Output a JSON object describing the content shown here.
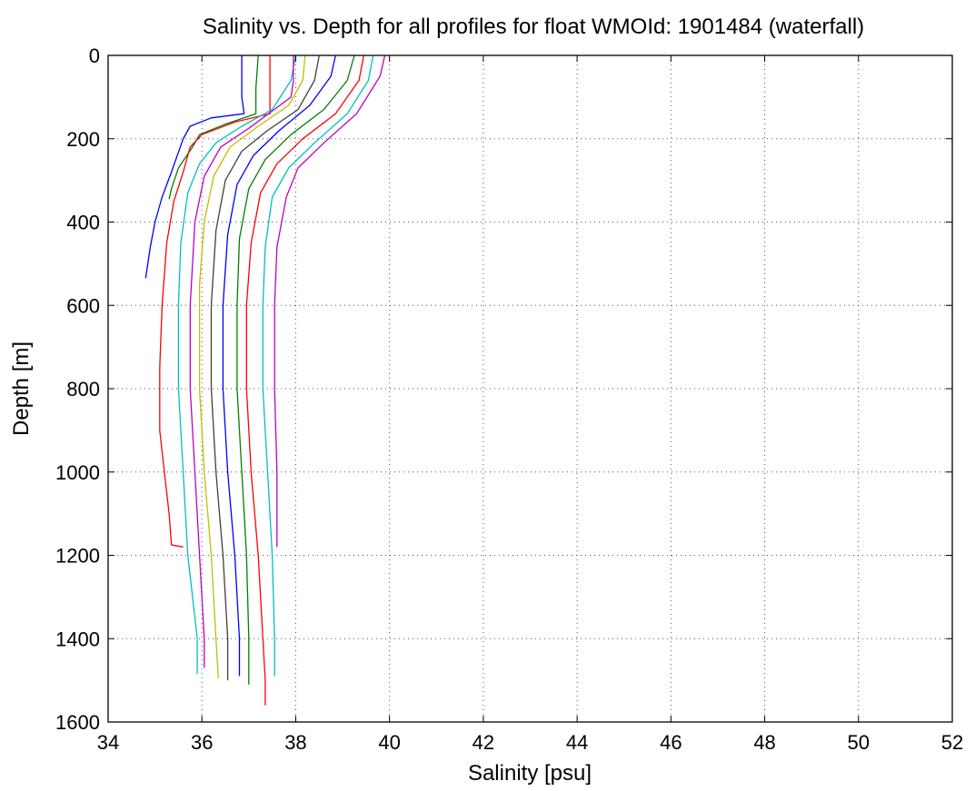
{
  "chart_data": {
    "type": "line",
    "title": "Salinity vs. Depth for all profiles for float WMOId: 1901484 (waterfall)",
    "xlabel": "Salinity [psu]",
    "ylabel": "Depth [m]",
    "xlim": [
      34,
      52
    ],
    "ylim": [
      0,
      1600
    ],
    "y_reversed": true,
    "grid": true,
    "xticks": [
      34,
      36,
      38,
      40,
      42,
      44,
      46,
      48,
      50,
      52
    ],
    "yticks": [
      0,
      200,
      400,
      600,
      800,
      1000,
      1200,
      1400,
      1600
    ],
    "series": [
      {
        "color": "#0000ff",
        "x": [
          36.85,
          36.85,
          36.9,
          36.2,
          35.75,
          35.6,
          35.35,
          35.15,
          35.0,
          34.9,
          34.8
        ],
        "y": [
          0,
          100,
          140,
          150,
          170,
          200,
          280,
          340,
          400,
          460,
          535
        ]
      },
      {
        "color": "#008000",
        "x": [
          37.2,
          37.15,
          37.15,
          36.5,
          35.95,
          35.8,
          35.5,
          35.35,
          35.3
        ],
        "y": [
          0,
          80,
          140,
          165,
          190,
          220,
          270,
          320,
          345
        ]
      },
      {
        "color": "#ff0000",
        "x": [
          37.45,
          37.45,
          37.45,
          36.7,
          36.0,
          35.75,
          35.6,
          35.4,
          35.25,
          35.15,
          35.1,
          35.1,
          35.2,
          35.3,
          35.35,
          35.6
        ],
        "y": [
          0,
          80,
          140,
          160,
          190,
          220,
          280,
          350,
          450,
          600,
          750,
          900,
          1000,
          1100,
          1175,
          1180
        ]
      },
      {
        "color": "#00bfbf",
        "x": [
          38.0,
          37.9,
          37.5,
          36.85,
          36.3,
          35.95,
          35.7,
          35.55,
          35.5,
          35.5,
          35.6,
          35.7,
          35.8,
          35.9,
          35.9
        ],
        "y": [
          0,
          60,
          130,
          170,
          210,
          260,
          330,
          450,
          600,
          800,
          1000,
          1200,
          1300,
          1400,
          1485
        ]
      },
      {
        "color": "#bf00bf",
        "x": [
          37.95,
          37.95,
          37.95,
          37.9,
          37.0,
          36.4,
          36.05,
          35.85,
          35.75,
          35.75,
          35.85,
          35.95,
          36.05,
          36.05
        ],
        "y": [
          0,
          30,
          60,
          100,
          175,
          220,
          290,
          400,
          600,
          800,
          1000,
          1200,
          1400,
          1470
        ]
      },
      {
        "color": "#bfbf00",
        "x": [
          38.2,
          38.15,
          37.85,
          37.2,
          36.6,
          36.25,
          36.05,
          35.95,
          35.95,
          36.05,
          36.2,
          36.3,
          36.35
        ],
        "y": [
          0,
          60,
          120,
          170,
          220,
          290,
          400,
          550,
          800,
          1000,
          1200,
          1400,
          1495
        ]
      },
      {
        "color": "#404040",
        "x": [
          38.5,
          38.4,
          38.05,
          37.4,
          36.85,
          36.5,
          36.3,
          36.2,
          36.2,
          36.3,
          36.45,
          36.55,
          36.55
        ],
        "y": [
          0,
          60,
          130,
          180,
          230,
          300,
          420,
          600,
          800,
          1000,
          1200,
          1400,
          1500
        ]
      },
      {
        "color": "#0000ff",
        "x": [
          38.85,
          38.75,
          38.3,
          37.65,
          37.1,
          36.75,
          36.55,
          36.45,
          36.45,
          36.55,
          36.7,
          36.8,
          36.8
        ],
        "y": [
          0,
          50,
          120,
          180,
          240,
          310,
          430,
          600,
          800,
          1000,
          1200,
          1400,
          1490
        ]
      },
      {
        "color": "#008000",
        "x": [
          39.25,
          39.1,
          38.6,
          37.9,
          37.35,
          37.0,
          36.8,
          36.75,
          36.75,
          36.85,
          36.95,
          37.0,
          37.0
        ],
        "y": [
          0,
          60,
          130,
          190,
          250,
          320,
          440,
          600,
          800,
          1000,
          1200,
          1400,
          1510
        ]
      },
      {
        "color": "#ff0000",
        "x": [
          39.45,
          39.35,
          38.85,
          38.15,
          37.6,
          37.25,
          37.05,
          36.95,
          36.95,
          37.05,
          37.2,
          37.3,
          37.35,
          37.35
        ],
        "y": [
          0,
          60,
          140,
          200,
          260,
          330,
          450,
          600,
          800,
          1000,
          1200,
          1400,
          1500,
          1560
        ]
      },
      {
        "color": "#00bfbf",
        "x": [
          39.65,
          39.55,
          39.1,
          38.4,
          37.85,
          37.5,
          37.35,
          37.3,
          37.3,
          37.4,
          37.5,
          37.55,
          37.55
        ],
        "y": [
          0,
          60,
          140,
          210,
          270,
          340,
          460,
          600,
          800,
          1000,
          1200,
          1400,
          1490
        ]
      },
      {
        "color": "#bf00bf",
        "x": [
          39.9,
          39.8,
          39.3,
          38.6,
          38.05,
          37.8,
          37.6,
          37.55,
          37.55,
          37.6,
          37.6
        ],
        "y": [
          0,
          50,
          140,
          210,
          270,
          340,
          460,
          600,
          800,
          1000,
          1180
        ]
      }
    ]
  }
}
